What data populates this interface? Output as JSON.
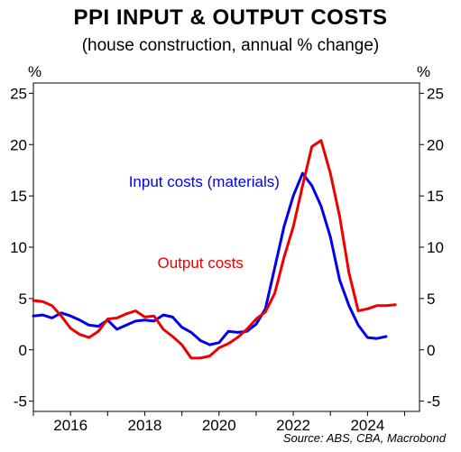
{
  "chart_data": {
    "type": "line",
    "title": "PPI INPUT & OUTPUT COSTS",
    "subtitle": "(house construction, annual % change)",
    "ylabel_left": "%",
    "ylabel_right": "%",
    "source": "Source: ABS, CBA, Macrobond",
    "xlim": [
      2015.0,
      2025.4
    ],
    "ylim": [
      -6,
      26
    ],
    "x_ticks": [
      2016,
      2018,
      2020,
      2022,
      2024
    ],
    "y_ticks": [
      -5,
      0,
      5,
      10,
      15,
      20,
      25
    ],
    "grid": false,
    "series": [
      {
        "name": "Input costs (materials)",
        "color": "#0000ee",
        "x": [
          2015.0,
          2015.25,
          2015.5,
          2015.75,
          2016.0,
          2016.25,
          2016.5,
          2016.75,
          2017.0,
          2017.25,
          2017.5,
          2017.75,
          2018.0,
          2018.25,
          2018.5,
          2018.75,
          2019.0,
          2019.25,
          2019.5,
          2019.75,
          2020.0,
          2020.25,
          2020.5,
          2020.75,
          2021.0,
          2021.25,
          2021.5,
          2021.75,
          2022.0,
          2022.25,
          2022.5,
          2022.75,
          2023.0,
          2023.25,
          2023.5,
          2023.75,
          2024.0,
          2024.25,
          2024.5,
          2024.75
        ],
        "y": [
          3.3,
          3.4,
          3.1,
          3.6,
          3.3,
          2.9,
          2.4,
          2.3,
          2.9,
          2.0,
          2.4,
          2.8,
          2.9,
          2.8,
          3.4,
          3.2,
          2.2,
          1.7,
          0.9,
          0.5,
          0.7,
          1.8,
          1.7,
          1.8,
          2.5,
          4.0,
          8.0,
          12.0,
          15.0,
          17.2,
          16.0,
          14.0,
          11.0,
          6.8,
          4.3,
          2.4,
          1.2,
          1.1,
          1.3,
          null
        ]
      },
      {
        "name": "Output costs",
        "color": "#ee0000",
        "x": [
          2015.0,
          2015.25,
          2015.5,
          2015.75,
          2016.0,
          2016.25,
          2016.5,
          2016.75,
          2017.0,
          2017.25,
          2017.5,
          2017.75,
          2018.0,
          2018.25,
          2018.5,
          2018.75,
          2019.0,
          2019.25,
          2019.5,
          2019.75,
          2020.0,
          2020.25,
          2020.5,
          2020.75,
          2021.0,
          2021.25,
          2021.5,
          2021.75,
          2022.0,
          2022.25,
          2022.5,
          2022.75,
          2023.0,
          2023.25,
          2023.5,
          2023.75,
          2024.0,
          2024.25,
          2024.5,
          2024.75
        ],
        "y": [
          4.8,
          4.7,
          4.3,
          3.3,
          2.1,
          1.5,
          1.2,
          1.8,
          3.0,
          3.1,
          3.5,
          3.8,
          3.2,
          3.3,
          2.0,
          1.3,
          0.5,
          -0.8,
          -0.8,
          -0.6,
          0.2,
          0.6,
          1.2,
          2.0,
          3.0,
          3.7,
          5.5,
          9.0,
          12.0,
          16.0,
          19.8,
          20.4,
          17.2,
          13.0,
          7.5,
          3.8,
          4.0,
          4.3,
          4.3,
          4.4
        ]
      }
    ],
    "annotations": [
      {
        "text": "Input costs (materials)",
        "color": "#0000ee",
        "x": 2019.6,
        "y": 15.9
      },
      {
        "text": "Output costs",
        "color": "#ee0000",
        "x": 2019.5,
        "y": 8.0
      }
    ]
  }
}
